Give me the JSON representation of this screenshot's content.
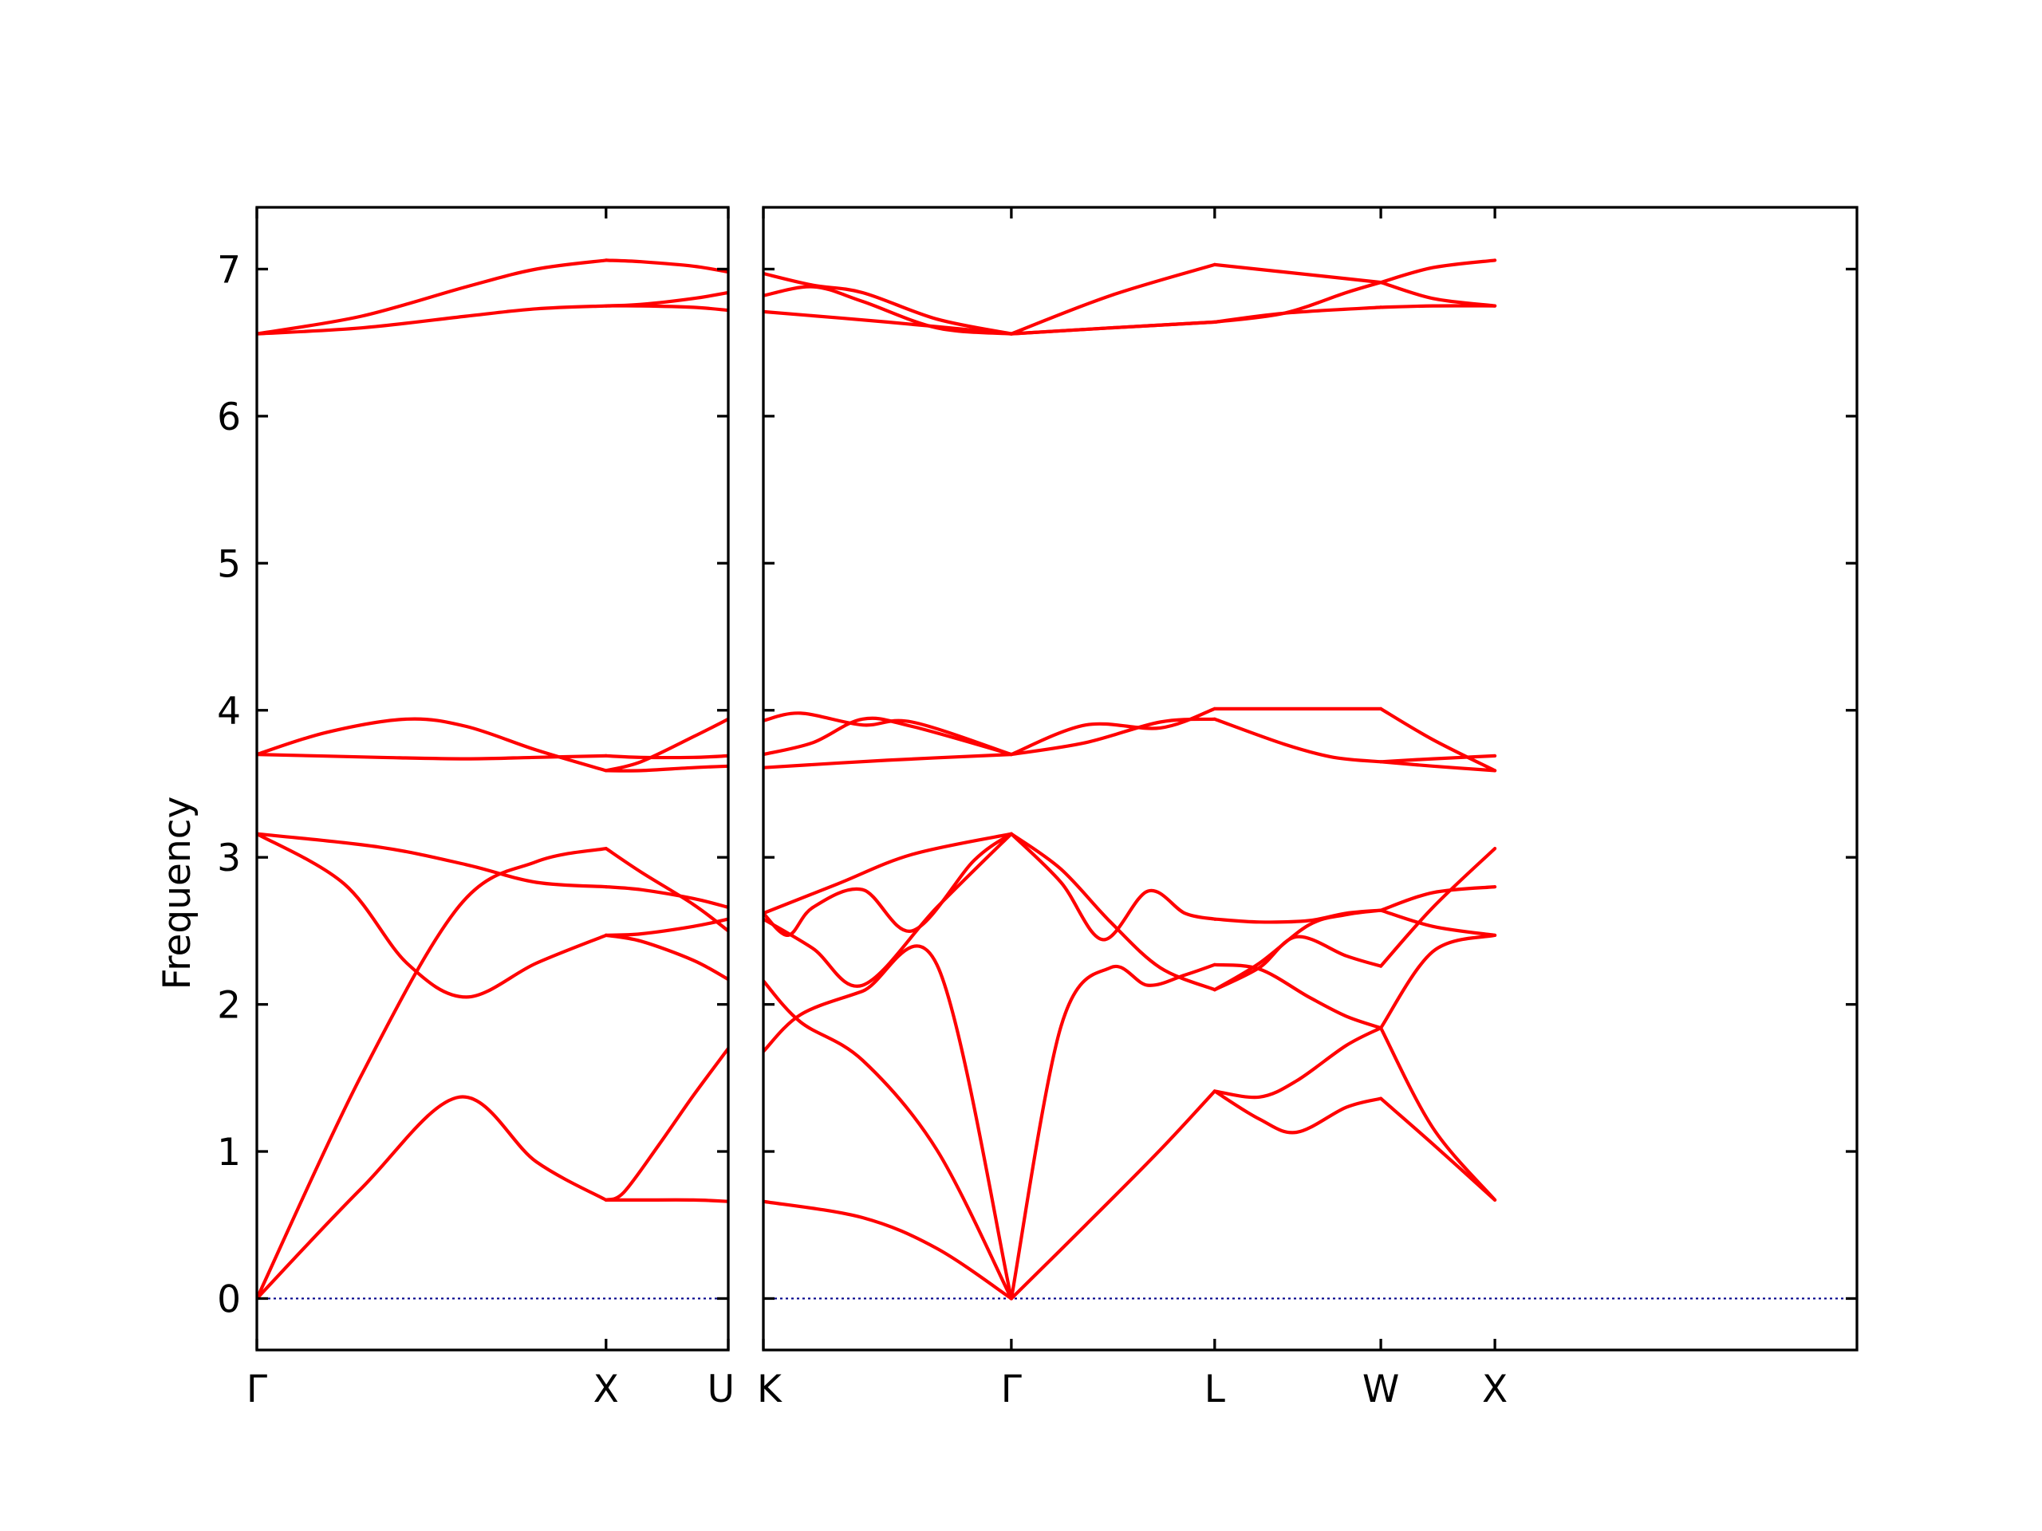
{
  "chart_data": {
    "type": "line",
    "title": "",
    "ylabel": "Frequency",
    "xlabel": "",
    "ylim": [
      -0.35,
      7.42
    ],
    "yticks": [
      0,
      1,
      2,
      3,
      4,
      5,
      6,
      7
    ],
    "yticklabels": [
      "0",
      "1",
      "2",
      "3",
      "4",
      "5",
      "6",
      "7"
    ],
    "grid": false,
    "legend": "none",
    "band_color": "#ff0000",
    "zero_line_color": "#00008b",
    "panels": [
      {
        "name": "left",
        "xlim": [
          0,
          1.35
        ],
        "xticks": [
          0,
          1.0,
          1.35
        ],
        "xticklabels": [
          "Γ",
          "X",
          "U"
        ],
        "xticklabel_align": [
          "center",
          "center",
          "right"
        ],
        "bands": [
          {
            "x": [
              0,
              0.3,
              0.58,
              0.8,
              1.0
            ],
            "y": [
              0,
              0.75,
              1.37,
              0.93,
              0.67
            ]
          },
          {
            "x": [
              0,
              0.3,
              0.58,
              0.8,
              1.0
            ],
            "y": [
              0,
              1.52,
              2.67,
              2.97,
              3.06
            ]
          },
          {
            "x": [
              0,
              0.25,
              0.43,
              0.6,
              0.8,
              1.0
            ],
            "y": [
              3.16,
              2.82,
              2.28,
              2.05,
              2.28,
              2.47
            ]
          },
          {
            "x": [
              0,
              0.35,
              0.6,
              0.8,
              1.0
            ],
            "y": [
              3.16,
              3.07,
              2.95,
              2.83,
              2.8
            ]
          },
          {
            "x": [
              0,
              0.2,
              0.43,
              0.6,
              0.8,
              1.0
            ],
            "y": [
              3.7,
              3.85,
              3.94,
              3.89,
              3.73,
              3.59
            ]
          },
          {
            "x": [
              0,
              0.35,
              0.6,
              0.8,
              1.0
            ],
            "y": [
              3.7,
              3.68,
              3.67,
              3.68,
              3.69
            ]
          },
          {
            "x": [
              0,
              0.3,
              0.6,
              0.8,
              1.0
            ],
            "y": [
              6.56,
              6.68,
              6.88,
              7.0,
              7.06
            ]
          },
          {
            "x": [
              0,
              0.3,
              0.6,
              0.8,
              1.0
            ],
            "y": [
              6.56,
              6.6,
              6.68,
              6.73,
              6.75
            ]
          },
          {
            "x": [
              1.0,
              1.05,
              1.15,
              1.25,
              1.35
            ],
            "y": [
              0.67,
              0.72,
              1.04,
              1.38,
              1.7
            ]
          },
          {
            "x": [
              1.0,
              1.1,
              1.25,
              1.35
            ],
            "y": [
              0.67,
              0.67,
              0.67,
              0.66
            ]
          },
          {
            "x": [
              1.0,
              1.1,
              1.25,
              1.35
            ],
            "y": [
              3.06,
              2.9,
              2.68,
              2.5
            ]
          },
          {
            "x": [
              1.0,
              1.1,
              1.25,
              1.35
            ],
            "y": [
              2.47,
              2.48,
              2.53,
              2.58
            ]
          },
          {
            "x": [
              1.0,
              1.1,
              1.25,
              1.35
            ],
            "y": [
              2.47,
              2.43,
              2.3,
              2.17
            ]
          },
          {
            "x": [
              1.0,
              1.1,
              1.25,
              1.35
            ],
            "y": [
              2.8,
              2.78,
              2.72,
              2.66
            ]
          },
          {
            "x": [
              1.0,
              1.1,
              1.25,
              1.35
            ],
            "y": [
              3.59,
              3.65,
              3.82,
              3.94
            ]
          },
          {
            "x": [
              1.0,
              1.1,
              1.25,
              1.35
            ],
            "y": [
              3.59,
              3.59,
              3.61,
              3.62
            ]
          },
          {
            "x": [
              1.0,
              1.1,
              1.25,
              1.35
            ],
            "y": [
              3.69,
              3.68,
              3.68,
              3.69
            ]
          },
          {
            "x": [
              1.0,
              1.1,
              1.25,
              1.35
            ],
            "y": [
              7.06,
              7.05,
              7.02,
              6.98
            ]
          },
          {
            "x": [
              1.0,
              1.1,
              1.25,
              1.35
            ],
            "y": [
              6.75,
              6.75,
              6.74,
              6.72
            ]
          },
          {
            "x": [
              1.0,
              1.1,
              1.25,
              1.35
            ],
            "y": [
              6.75,
              6.76,
              6.8,
              6.84
            ]
          }
        ]
      },
      {
        "name": "right",
        "xlim": [
          0,
          4.41
        ],
        "xticks": [
          0,
          1.0,
          1.82,
          2.49,
          2.95
        ],
        "xticklabels": [
          "K",
          "Γ",
          "L",
          "W",
          "X"
        ],
        "xticklabel_align": [
          "left",
          "center",
          "center",
          "center",
          "center"
        ],
        "bands": [
          {
            "x": [
              0,
              0.4,
              0.7,
              1.0
            ],
            "y": [
              0.66,
              0.55,
              0.34,
              0
            ]
          },
          {
            "x": [
              0,
              0.15,
              0.4,
              0.7,
              1.0
            ],
            "y": [
              1.68,
              1.93,
              2.09,
              2.27,
              0
            ]
          },
          {
            "x": [
              0,
              0.15,
              0.4,
              0.7,
              1.0
            ],
            "y": [
              2.16,
              1.88,
              1.62,
              1.01,
              0
            ]
          },
          {
            "x": [
              0,
              0.1,
              0.2,
              0.4,
              0.6,
              0.85,
              1.0
            ],
            "y": [
              2.62,
              2.47,
              2.66,
              2.78,
              2.5,
              2.98,
              3.16
            ]
          },
          {
            "x": [
              0,
              0.2,
              0.4,
              0.7,
              1.0
            ],
            "y": [
              2.58,
              2.38,
              2.13,
              2.66,
              3.16
            ]
          },
          {
            "x": [
              0,
              0.3,
              0.6,
              1.0
            ],
            "y": [
              2.62,
              2.82,
              3.02,
              3.16
            ]
          },
          {
            "x": [
              0,
              0.15,
              0.4,
              0.6,
              1.0
            ],
            "y": [
              3.93,
              3.98,
              3.9,
              3.92,
              3.7
            ]
          },
          {
            "x": [
              0,
              0.2,
              0.4,
              0.6,
              1.0
            ],
            "y": [
              3.7,
              3.78,
              3.94,
              3.89,
              3.7
            ]
          },
          {
            "x": [
              0,
              0.5,
              1.0
            ],
            "y": [
              3.61,
              3.66,
              3.7
            ]
          },
          {
            "x": [
              0,
              0.2,
              0.4,
              0.7,
              1.0
            ],
            "y": [
              6.97,
              6.89,
              6.84,
              6.66,
              6.56
            ]
          },
          {
            "x": [
              0,
              0.2,
              0.4,
              0.7,
              1.0
            ],
            "y": [
              6.82,
              6.88,
              6.78,
              6.6,
              6.56
            ]
          },
          {
            "x": [
              0,
              0.5,
              1.0
            ],
            "y": [
              6.71,
              6.64,
              6.56
            ]
          },
          {
            "x": [
              1.0,
              1.3,
              1.6,
              1.82
            ],
            "y": [
              0,
              0.5,
              1.01,
              1.41
            ]
          },
          {
            "x": [
              1.0,
              1.2,
              1.4,
              1.55,
              1.7,
              1.82
            ],
            "y": [
              0,
              1.85,
              2.25,
              2.13,
              2.2,
              2.27
            ]
          },
          {
            "x": [
              1.0,
              1.2,
              1.4,
              1.6,
              1.82
            ],
            "y": [
              3.16,
              2.92,
              2.56,
              2.25,
              2.1
            ]
          },
          {
            "x": [
              1.0,
              1.2,
              1.37,
              1.55,
              1.7,
              1.82
            ],
            "y": [
              3.16,
              2.83,
              2.44,
              2.77,
              2.62,
              2.58
            ]
          },
          {
            "x": [
              1.0,
              1.3,
              1.6,
              1.82
            ],
            "y": [
              3.7,
              3.9,
              3.88,
              4.01
            ]
          },
          {
            "x": [
              1.0,
              1.3,
              1.6,
              1.82
            ],
            "y": [
              3.7,
              3.78,
              3.92,
              3.94
            ]
          },
          {
            "x": [
              1.0,
              1.4,
              1.82
            ],
            "y": [
              6.56,
              6.82,
              7.03
            ]
          },
          {
            "x": [
              1.0,
              1.4,
              1.82
            ],
            "y": [
              6.56,
              6.6,
              6.64
            ]
          },
          {
            "x": [
              1.0,
              1.4,
              1.82
            ],
            "y": [
              6.56,
              6.6,
              6.64
            ]
          },
          {
            "x": [
              1.82,
              2.0,
              2.15,
              2.35,
              2.49
            ],
            "y": [
              1.41,
              1.37,
              1.48,
              1.72,
              1.84
            ]
          },
          {
            "x": [
              1.82,
              2.0,
              2.15,
              2.35,
              2.49
            ],
            "y": [
              1.41,
              1.22,
              1.13,
              1.3,
              1.36
            ]
          },
          {
            "x": [
              1.82,
              2.0,
              2.2,
              2.35,
              2.49
            ],
            "y": [
              2.1,
              2.28,
              2.54,
              2.61,
              2.64
            ]
          },
          {
            "x": [
              1.82,
              2.0,
              2.2,
              2.35,
              2.49
            ],
            "y": [
              2.27,
              2.24,
              2.05,
              1.92,
              1.84
            ]
          },
          {
            "x": [
              1.82,
              2.0,
              2.15,
              2.35,
              2.49
            ],
            "y": [
              2.1,
              2.25,
              2.46,
              2.33,
              2.26
            ]
          },
          {
            "x": [
              1.82,
              2.0,
              2.2,
              2.35,
              2.49
            ],
            "y": [
              2.58,
              2.56,
              2.57,
              2.62,
              2.64
            ]
          },
          {
            "x": [
              1.82,
              2.1,
              2.49
            ],
            "y": [
              4.01,
              4.01,
              4.01
            ]
          },
          {
            "x": [
              1.82,
              2.1,
              2.3,
              2.49
            ],
            "y": [
              3.94,
              3.77,
              3.68,
              3.65
            ]
          },
          {
            "x": [
              1.82,
              2.1,
              2.49
            ],
            "y": [
              7.03,
              6.98,
              6.91
            ]
          },
          {
            "x": [
              1.82,
              2.1,
              2.35,
              2.49
            ],
            "y": [
              6.64,
              6.7,
              6.84,
              6.91
            ]
          },
          {
            "x": [
              1.82,
              2.1,
              2.49
            ],
            "y": [
              6.64,
              6.7,
              6.74
            ]
          },
          {
            "x": [
              2.49,
              2.7,
              2.95
            ],
            "y": [
              1.84,
              1.16,
              0.67
            ]
          },
          {
            "x": [
              2.49,
              2.7,
              2.95
            ],
            "y": [
              1.36,
              1.05,
              0.67
            ]
          },
          {
            "x": [
              2.49,
              2.7,
              2.95
            ],
            "y": [
              1.84,
              2.36,
              2.47
            ]
          },
          {
            "x": [
              2.49,
              2.7,
              2.95
            ],
            "y": [
              2.26,
              2.66,
              3.06
            ]
          },
          {
            "x": [
              2.49,
              2.7,
              2.95
            ],
            "y": [
              2.64,
              2.76,
              2.8
            ]
          },
          {
            "x": [
              2.49,
              2.7,
              2.95
            ],
            "y": [
              2.64,
              2.53,
              2.47
            ]
          },
          {
            "x": [
              2.49,
              2.7,
              2.95
            ],
            "y": [
              4.01,
              3.8,
              3.59
            ]
          },
          {
            "x": [
              2.49,
              2.7,
              2.95
            ],
            "y": [
              3.65,
              3.62,
              3.59
            ]
          },
          {
            "x": [
              2.49,
              2.7,
              2.95
            ],
            "y": [
              3.65,
              3.67,
              3.69
            ]
          },
          {
            "x": [
              2.49,
              2.7,
              2.95
            ],
            "y": [
              6.91,
              7.01,
              7.06
            ]
          },
          {
            "x": [
              2.49,
              2.7,
              2.95
            ],
            "y": [
              6.91,
              6.8,
              6.75
            ]
          },
          {
            "x": [
              2.49,
              2.7,
              2.95
            ],
            "y": [
              6.74,
              6.75,
              6.75
            ]
          }
        ]
      }
    ]
  }
}
